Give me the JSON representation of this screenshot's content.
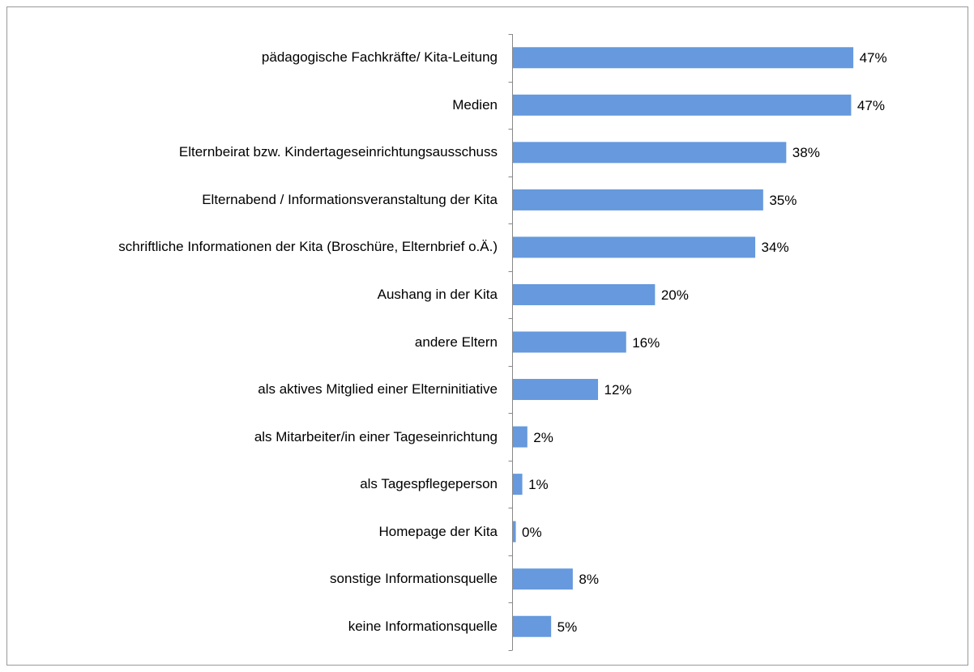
{
  "chart_data": {
    "type": "bar",
    "orientation": "horizontal",
    "categories": [
      "pädagogische Fachkräfte/ Kita-Leitung",
      "Medien",
      "Elternbeirat bzw. Kindertageseinrichtungsausschuss",
      "Elternabend / Informationsveranstaltung der Kita",
      "schriftliche Informationen der Kita (Broschüre, Elternbrief o.Ä.)",
      "Aushang in der Kita",
      "andere Eltern",
      "als aktives Mitglied einer Elterninitiative",
      "als Mitarbeiter/in einer Tageseinrichtung",
      "als Tagespflegeperson",
      "Homepage der Kita",
      "sonstige Informationsquelle",
      "keine Informationsquelle"
    ],
    "values": [
      47.2,
      46.9,
      37.9,
      34.7,
      33.6,
      19.7,
      15.7,
      11.8,
      2.0,
      1.3,
      0.4,
      8.3,
      5.3
    ],
    "value_labels": [
      "47%",
      "47%",
      "38%",
      "35%",
      "34%",
      "20%",
      "16%",
      "12%",
      "2%",
      "1%",
      "0%",
      "8%",
      "5%"
    ],
    "color": "#6699dd"
  }
}
